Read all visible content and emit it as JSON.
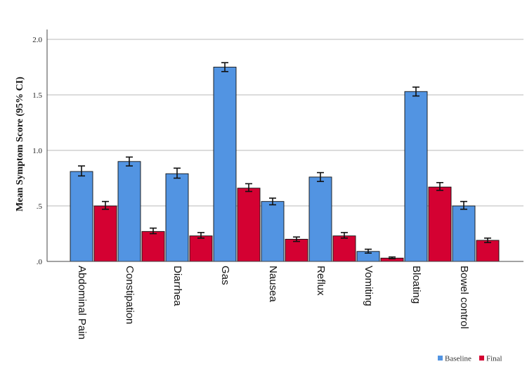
{
  "chart_data": {
    "type": "bar",
    "title": "",
    "xlabel": "",
    "ylabel": "Mean Symptom Score (95% CI)",
    "ylim": [
      0,
      2.0
    ],
    "yticks": [
      0,
      0.5,
      1.0,
      1.5,
      2.0
    ],
    "ytick_labels": [
      ".0",
      ".5",
      "1.0",
      "1.5",
      "2.0"
    ],
    "grid": "horizontal",
    "legend_position": "bottom-right",
    "categories": [
      "Abdominal Pain",
      "Constipation",
      "Diarrhea",
      "Gas",
      "Nausea",
      "Reflux",
      "Vomiting",
      "Bloating",
      "Bowel control"
    ],
    "series": [
      {
        "name": "Baseline",
        "color": "#5294e2",
        "values": [
          0.81,
          0.9,
          0.79,
          1.75,
          0.54,
          0.76,
          0.09,
          1.53,
          0.5
        ],
        "ci_low": [
          0.77,
          0.86,
          0.75,
          1.71,
          0.51,
          0.72,
          0.075,
          1.49,
          0.47
        ],
        "ci_high": [
          0.86,
          0.94,
          0.84,
          1.79,
          0.57,
          0.8,
          0.11,
          1.57,
          0.54
        ]
      },
      {
        "name": "Final",
        "color": "#d40132",
        "values": [
          0.5,
          0.27,
          0.23,
          0.66,
          0.2,
          0.23,
          0.03,
          0.67,
          0.19
        ],
        "ci_low": [
          0.47,
          0.25,
          0.21,
          0.63,
          0.18,
          0.21,
          0.025,
          0.64,
          0.17
        ],
        "ci_high": [
          0.54,
          0.3,
          0.26,
          0.7,
          0.22,
          0.26,
          0.04,
          0.71,
          0.21
        ]
      }
    ]
  }
}
